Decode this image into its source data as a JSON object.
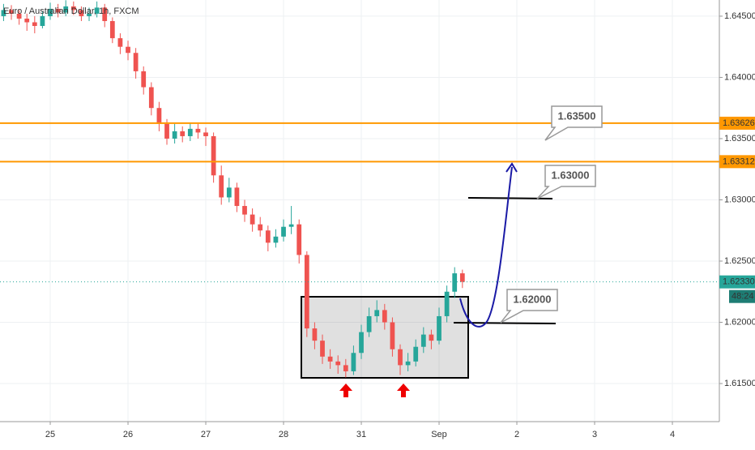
{
  "chart_data": {
    "type": "candlestick",
    "title": "Euro / Australian Dollar, 1h, FXCM",
    "x": [
      -0.6,
      -0.5,
      -0.4,
      -0.3,
      -0.2,
      -0.1,
      0,
      0.1,
      0.2,
      0.3,
      0.4,
      0.5,
      0.6,
      0.7,
      0.8,
      0.9,
      1,
      1.1,
      1.2,
      1.3,
      1.4,
      1.5,
      1.6,
      1.7,
      1.8,
      1.9,
      2,
      2.1,
      2.2,
      2.3,
      2.4,
      2.5,
      2.6,
      2.7,
      2.8,
      2.9,
      3,
      3.1,
      3.2,
      3.3,
      3.4,
      3.5,
      3.6,
      3.7,
      3.8,
      3.9,
      4,
      4.1,
      4.2,
      4.3,
      4.4,
      4.5,
      4.6,
      4.7,
      4.8,
      4.9,
      5,
      5.1,
      5.2,
      5.3
    ],
    "open": [
      1.645,
      1.6455,
      1.6452,
      1.6448,
      1.6445,
      1.6442,
      1.645,
      1.6456,
      1.6453,
      1.6458,
      1.6455,
      1.645,
      1.6452,
      1.6457,
      1.6446,
      1.6432,
      1.6425,
      1.642,
      1.6405,
      1.6392,
      1.6375,
      1.6362,
      1.635,
      1.6356,
      1.6352,
      1.6358,
      1.6355,
      1.6352,
      1.632,
      1.6302,
      1.631,
      1.6295,
      1.6288,
      1.628,
      1.6275,
      1.6265,
      1.627,
      1.6278,
      1.628,
      1.6255,
      1.6195,
      1.6185,
      1.6172,
      1.6168,
      1.6165,
      1.616,
      1.6175,
      1.6192,
      1.6205,
      1.621,
      1.62,
      1.6178,
      1.6165,
      1.6168,
      1.618,
      1.619,
      1.6185,
      1.6205,
      1.6225,
      1.624
    ],
    "high": [
      1.646,
      1.6459,
      1.6455,
      1.6452,
      1.645,
      1.6454,
      1.6461,
      1.646,
      1.6463,
      1.6462,
      1.6458,
      1.6457,
      1.6462,
      1.646,
      1.6449,
      1.6436,
      1.643,
      1.6424,
      1.6409,
      1.6396,
      1.638,
      1.6366,
      1.6362,
      1.636,
      1.6363,
      1.6362,
      1.6359,
      1.6355,
      1.6328,
      1.6318,
      1.6314,
      1.63,
      1.6293,
      1.6286,
      1.6279,
      1.6276,
      1.6284,
      1.6295,
      1.6284,
      1.6258,
      1.62,
      1.619,
      1.6178,
      1.6173,
      1.617,
      1.6181,
      1.6198,
      1.6212,
      1.6218,
      1.6215,
      1.6204,
      1.6182,
      1.6175,
      1.6186,
      1.6196,
      1.6194,
      1.6212,
      1.623,
      1.6245,
      1.6243
    ],
    "low": [
      1.6446,
      1.6447,
      1.6443,
      1.6438,
      1.6436,
      1.644,
      1.6447,
      1.6449,
      1.645,
      1.6451,
      1.6446,
      1.6446,
      1.6449,
      1.6441,
      1.6428,
      1.6419,
      1.6414,
      1.6399,
      1.6386,
      1.6369,
      1.6356,
      1.6345,
      1.6346,
      1.6347,
      1.6348,
      1.635,
      1.6344,
      1.6314,
      1.6296,
      1.6298,
      1.629,
      1.6282,
      1.6274,
      1.627,
      1.6258,
      1.6261,
      1.6266,
      1.6272,
      1.6248,
      1.6188,
      1.6178,
      1.6166,
      1.6162,
      1.6158,
      1.6155,
      1.6157,
      1.617,
      1.6188,
      1.62,
      1.6194,
      1.6172,
      1.6157,
      1.616,
      1.6164,
      1.6175,
      1.6178,
      1.6182,
      1.62,
      1.622,
      1.6228
    ],
    "close": [
      1.6455,
      1.6452,
      1.6448,
      1.6445,
      1.6442,
      1.645,
      1.6456,
      1.6453,
      1.6458,
      1.6455,
      1.645,
      1.6452,
      1.6457,
      1.6446,
      1.6432,
      1.6425,
      1.642,
      1.6405,
      1.6392,
      1.6375,
      1.6362,
      1.635,
      1.6356,
      1.6352,
      1.6358,
      1.6355,
      1.6352,
      1.632,
      1.6302,
      1.631,
      1.6295,
      1.6288,
      1.628,
      1.6275,
      1.6265,
      1.627,
      1.6278,
      1.628,
      1.6255,
      1.6195,
      1.6185,
      1.6172,
      1.6168,
      1.6165,
      1.616,
      1.6175,
      1.6192,
      1.6205,
      1.621,
      1.62,
      1.6178,
      1.6165,
      1.6168,
      1.618,
      1.619,
      1.6185,
      1.6205,
      1.6225,
      1.624,
      1.6233
    ],
    "up_color": "#26a69a",
    "down_color": "#ef5350",
    "xlim": [
      -0.646,
      8.604
    ],
    "ylim": [
      1.61189,
      1.64632
    ],
    "xticks": [
      {
        "value": 0,
        "label": "25"
      },
      {
        "value": 1,
        "label": "26"
      },
      {
        "value": 2,
        "label": "27"
      },
      {
        "value": 3,
        "label": "28"
      },
      {
        "value": 4,
        "label": "31"
      },
      {
        "value": 5,
        "label": "Sep"
      },
      {
        "value": 6,
        "label": "2"
      },
      {
        "value": 7,
        "label": "3"
      },
      {
        "value": 8,
        "label": "4"
      }
    ],
    "yticks": [
      {
        "value": 1.645,
        "label": "1.64500"
      },
      {
        "value": 1.64,
        "label": "1.64000"
      },
      {
        "value": 1.635,
        "label": "1.63500"
      },
      {
        "value": 1.63,
        "label": "1.63000"
      },
      {
        "value": 1.625,
        "label": "1.62500"
      },
      {
        "value": 1.62,
        "label": "1.62000"
      },
      {
        "value": 1.615,
        "label": "1.61500"
      }
    ],
    "grid": true,
    "levels": [
      {
        "value": 1.63626,
        "label": "1.63626"
      },
      {
        "value": 1.63312,
        "label": "1.63312"
      }
    ],
    "level_color": "#ff9800",
    "last_price": {
      "value": 1.6233,
      "label": "1.62330"
    },
    "countdown": "48:24",
    "annotations": [
      "1.63500",
      "1.63000",
      "1.62000"
    ]
  }
}
